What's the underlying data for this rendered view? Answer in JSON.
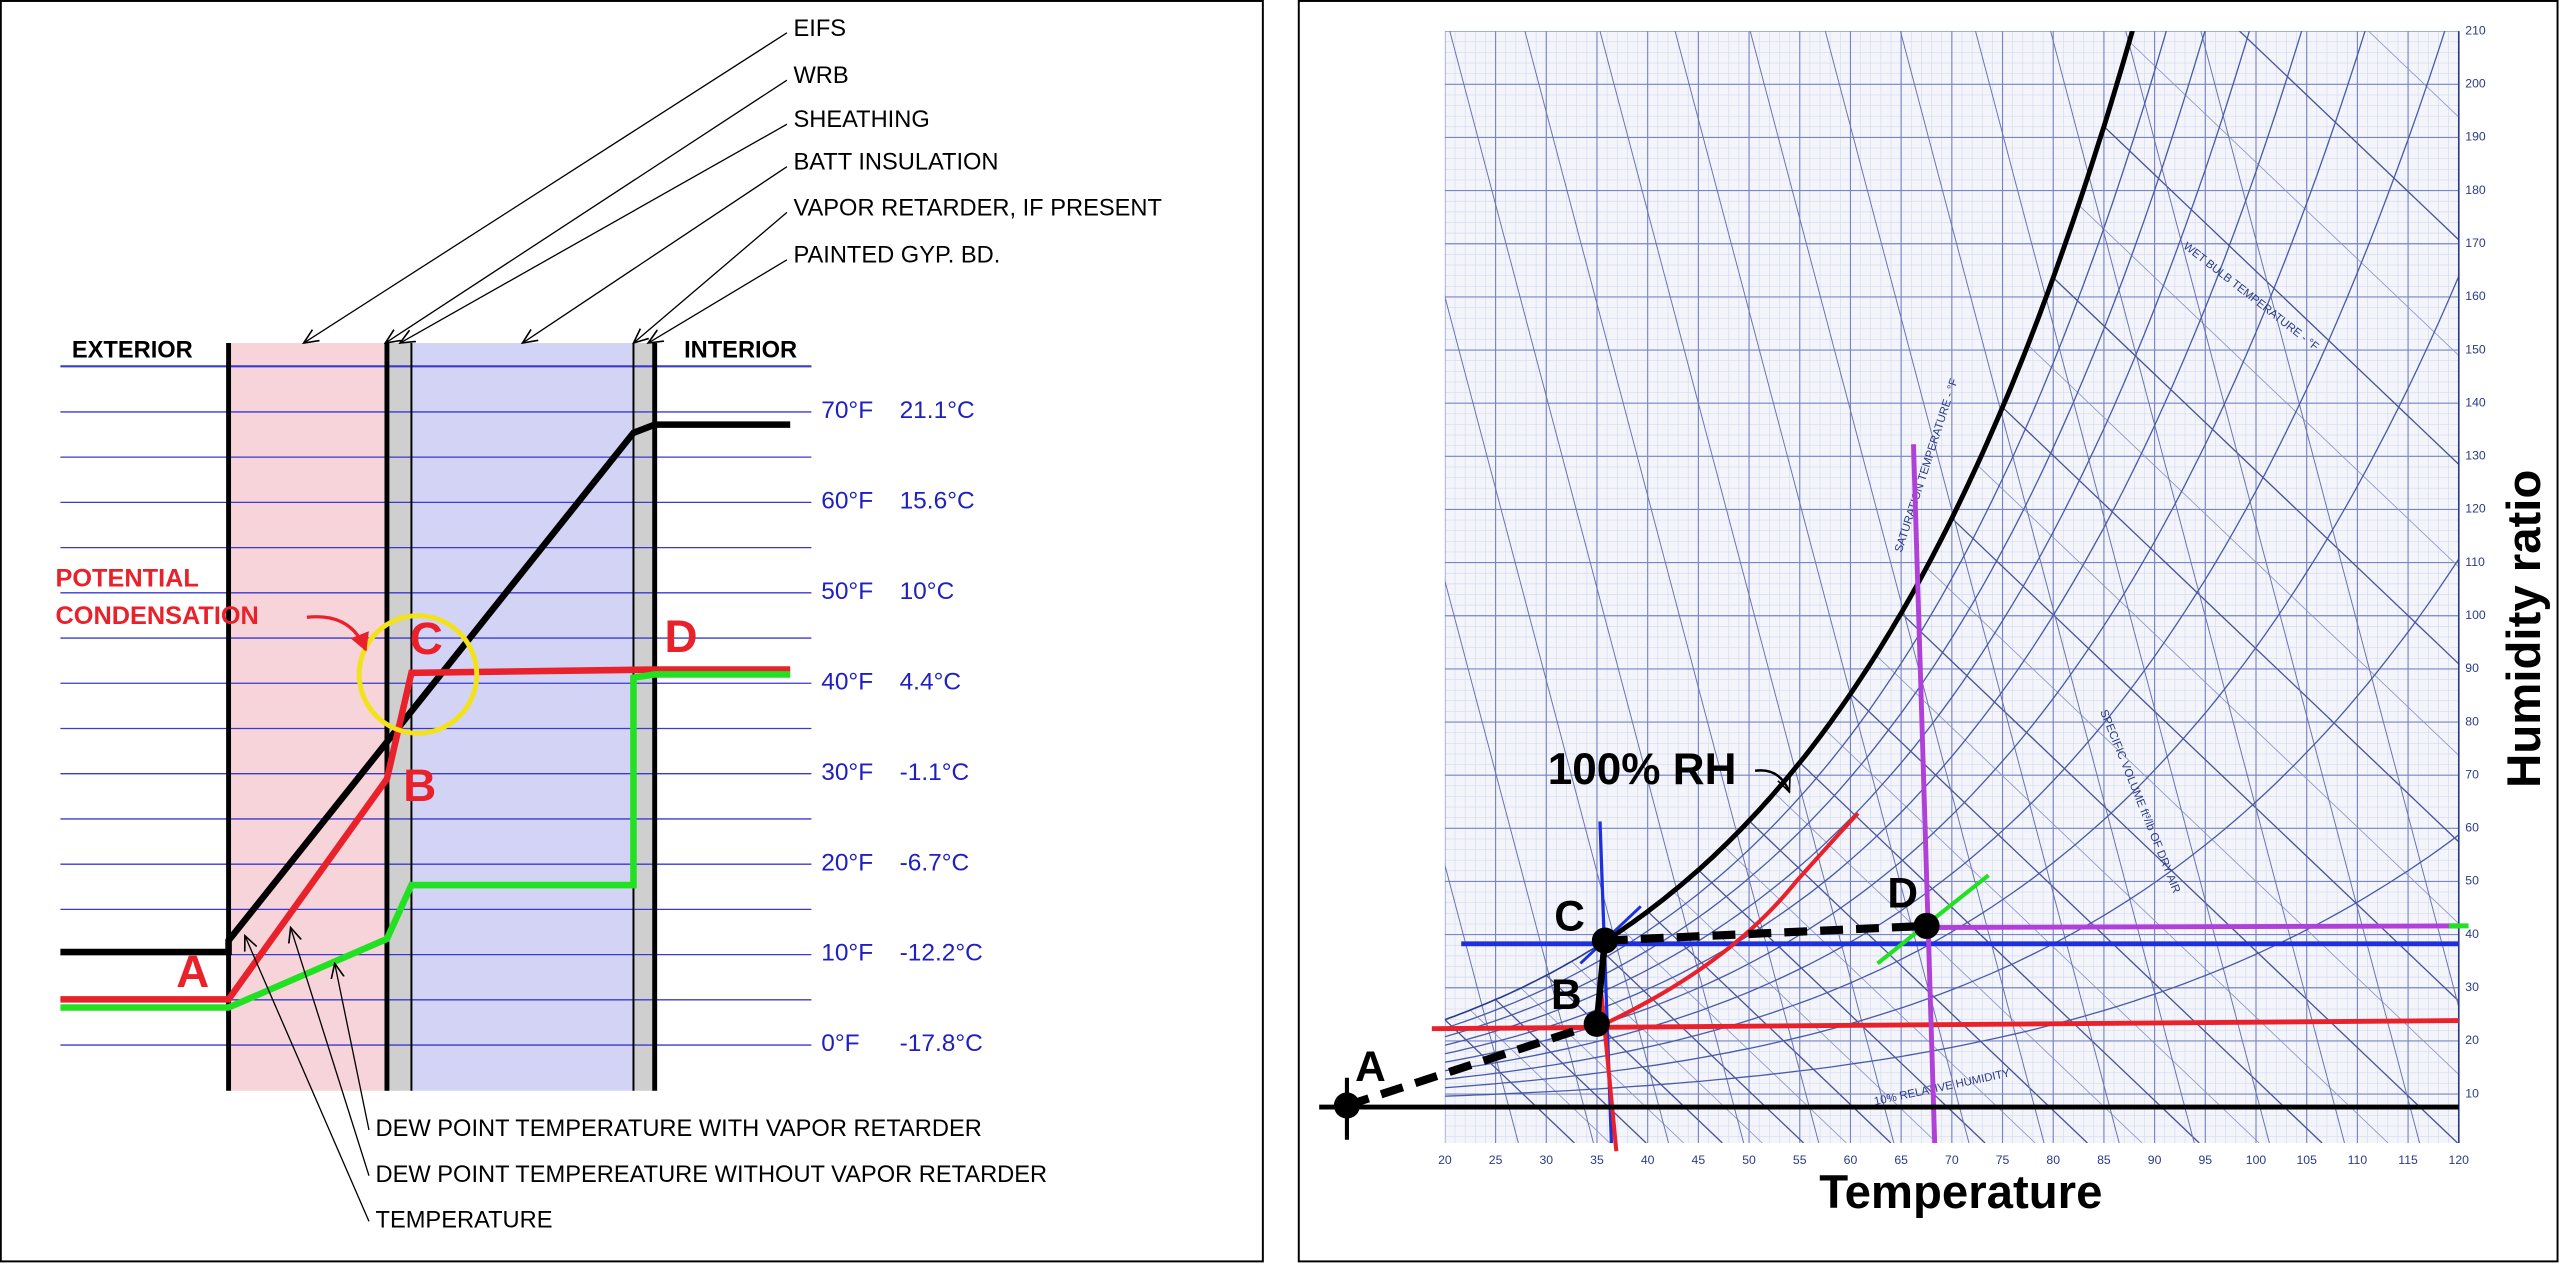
{
  "left_panel": {
    "layers": [
      "EIFS",
      "WRB",
      "SHEATHING",
      "BATT INSULATION",
      "VAPOR RETARDER, IF PRESENT",
      "PAINTED GYP. BD."
    ],
    "exterior": "EXTERIOR",
    "interior": "INTERIOR",
    "temperature_scale": [
      {
        "f": "70°F",
        "c": "21.1°C"
      },
      {
        "f": "60°F",
        "c": "15.6°C"
      },
      {
        "f": "50°F",
        "c": "10°C"
      },
      {
        "f": "40°F",
        "c": "4.4°C"
      },
      {
        "f": "30°F",
        "c": "-1.1°C"
      },
      {
        "f": "20°F",
        "c": "-6.7°C"
      },
      {
        "f": "10°F",
        "c": "-12.2°C"
      },
      {
        "f": "0°F",
        "c": "-17.8°C"
      }
    ],
    "point_labels": [
      "A",
      "B",
      "C",
      "D"
    ],
    "callout": [
      "POTENTIAL",
      "CONDENSATION"
    ],
    "legend": [
      "DEW POINT TEMPERATURE WITH VAPOR RETARDER",
      "DEW POINT TEMPEREATURE WITHOUT VAPOR RETARDER",
      "TEMPERATURE"
    ]
  },
  "right_panel": {
    "x_axis_title": "Temperature",
    "y_axis_title": "Humidity ratio",
    "x_ticks": [
      20,
      25,
      30,
      35,
      40,
      45,
      50,
      55,
      60,
      65,
      70,
      75,
      80,
      85,
      90,
      95,
      100,
      105,
      110,
      115,
      120
    ],
    "y_ticks": [
      10,
      20,
      30,
      40,
      50,
      60,
      70,
      80,
      90,
      100,
      110,
      120,
      130,
      140,
      150,
      160,
      170,
      180,
      190,
      200,
      210
    ],
    "saturation_label": "100% RH",
    "point_labels": [
      "A",
      "B",
      "C",
      "D"
    ],
    "chart_notes": [
      "SATURATION TEMPERATURE - °F",
      "WET BULB TEMPERATURE - °F",
      "SPECIFIC VOLUME ft³/lb OF DRY AIR",
      "10% RELATIVE HUMIDITY"
    ]
  }
}
